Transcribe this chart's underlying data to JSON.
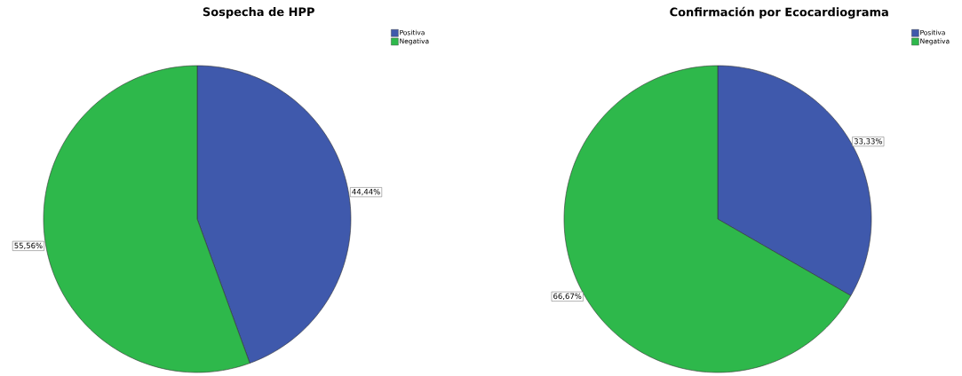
{
  "chart_data": [
    {
      "type": "pie",
      "title": "Sospecha de HPP",
      "categories": [
        "Positiva",
        "Negativa"
      ],
      "values": [
        44.44,
        55.56
      ],
      "colors": [
        "#3f59ac",
        "#2eb84b"
      ],
      "value_labels": [
        "44,44%",
        "55,56%"
      ],
      "legend": "top right"
    },
    {
      "type": "pie",
      "title": "Confirmación por Ecocardiograma",
      "categories": [
        "Positiva",
        "Negativa"
      ],
      "values": [
        33.33,
        66.67
      ],
      "colors": [
        "#3f59ac",
        "#2eb84b"
      ],
      "value_labels": [
        "33,33%",
        "66,67%"
      ],
      "legend": "top right"
    }
  ]
}
